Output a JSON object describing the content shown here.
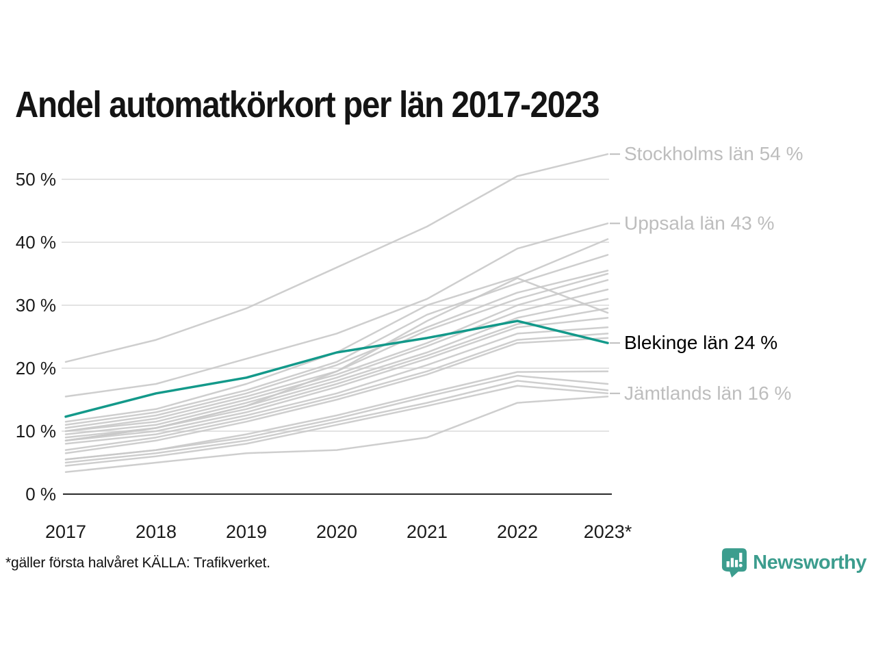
{
  "title": "Andel automatkörkort per län 2017-2023",
  "footnote": "*gäller första halvåret KÄLLA: Trafikverket.",
  "branding": {
    "name": "Newsworthy",
    "logo_icon": "bar-chart-pin-icon",
    "color": "#3C9D8E"
  },
  "colors": {
    "highlight_line": "#13998A",
    "muted_line": "#C9C9C9",
    "muted_label": "#BDBDBD",
    "dark_label": "#000000",
    "grid": "#E3E3E3",
    "axis": "#2A2A2A",
    "tick_text": "#1A1A1A"
  },
  "chart_data": {
    "type": "line",
    "title": "Andel automatkörkort per län 2017-2023",
    "x": [
      2017,
      2018,
      2019,
      2020,
      2021,
      2022,
      2023
    ],
    "x_tick_labels": [
      "2017",
      "2018",
      "2019",
      "2020",
      "2021",
      "2022",
      "2023*"
    ],
    "y_ticks": [
      0,
      10,
      20,
      30,
      40,
      50
    ],
    "y_tick_labels": [
      "0 %",
      "10 %",
      "20 %",
      "30 %",
      "40 %",
      "50 %"
    ],
    "ylim": [
      0,
      57
    ],
    "grid": "horizontal",
    "legend_position": "right-annotations",
    "annotations": [
      "Stockholms län 54 %",
      "Uppsala län 43 %",
      "Blekinge län 24 %",
      "Jämtlands län 16 %"
    ],
    "series": [
      {
        "id": "stockholm",
        "label": "Stockholms län 54 %",
        "label_style": "muted",
        "highlight": false,
        "values": [
          21,
          24.5,
          29.5,
          36,
          42.5,
          50.5,
          54
        ]
      },
      {
        "id": "uppsala",
        "label": "Uppsala län 43 %",
        "label_style": "muted",
        "highlight": false,
        "values": [
          15.5,
          17.5,
          21.5,
          25.5,
          31,
          39,
          43
        ]
      },
      {
        "id": "county-03",
        "label": null,
        "highlight": false,
        "values": [
          11.5,
          13.5,
          17.5,
          22.5,
          30,
          34.5,
          40.5
        ]
      },
      {
        "id": "county-04",
        "label": null,
        "highlight": false,
        "values": [
          11,
          13,
          16.5,
          21,
          28.5,
          33.5,
          38
        ]
      },
      {
        "id": "county-05",
        "label": null,
        "highlight": false,
        "values": [
          10.5,
          12.5,
          16,
          20.5,
          26.5,
          32,
          35.5
        ]
      },
      {
        "id": "county-06",
        "label": null,
        "highlight": false,
        "values": [
          10,
          12,
          15.5,
          19.5,
          26,
          31,
          35
        ]
      },
      {
        "id": "county-07",
        "label": null,
        "highlight": false,
        "values": [
          8.5,
          10.5,
          14,
          19.5,
          27.5,
          34.3,
          28.8
        ]
      },
      {
        "id": "county-08",
        "label": null,
        "highlight": false,
        "values": [
          10,
          11.5,
          15,
          19,
          24,
          30,
          34
        ]
      },
      {
        "id": "county-09",
        "label": null,
        "highlight": false,
        "values": [
          9.5,
          11,
          14.5,
          18.5,
          23.5,
          29,
          32.5
        ]
      },
      {
        "id": "county-10",
        "label": null,
        "highlight": false,
        "values": [
          9,
          10.5,
          14,
          18,
          22.5,
          28,
          31
        ]
      },
      {
        "id": "county-11",
        "label": null,
        "highlight": false,
        "values": [
          8.5,
          10.5,
          13.5,
          17.5,
          22,
          27,
          29.5
        ]
      },
      {
        "id": "county-12",
        "label": null,
        "highlight": false,
        "values": [
          8.5,
          10,
          13,
          17,
          21.5,
          26.5,
          28
        ]
      },
      {
        "id": "county-13",
        "label": null,
        "highlight": false,
        "values": [
          8,
          9.5,
          12.5,
          16,
          20.5,
          25.5,
          26.5
        ]
      },
      {
        "id": "county-14",
        "label": null,
        "highlight": false,
        "values": [
          7,
          9,
          12,
          15.5,
          19.5,
          24.5,
          25.5
        ]
      },
      {
        "id": "county-15",
        "label": null,
        "highlight": false,
        "values": [
          6.5,
          8.5,
          11.5,
          15,
          19,
          24,
          24.8
        ]
      },
      {
        "id": "county-17",
        "label": null,
        "highlight": false,
        "values": [
          5.5,
          7,
          9.5,
          12.5,
          16,
          19.4,
          19.5
        ]
      },
      {
        "id": "county-18",
        "label": null,
        "highlight": false,
        "values": [
          5.5,
          7,
          9,
          12,
          15.5,
          18.8,
          17.5
        ]
      },
      {
        "id": "county-19",
        "label": null,
        "highlight": false,
        "values": [
          5,
          6.5,
          8.5,
          11.5,
          14.5,
          18,
          16.5
        ]
      },
      {
        "id": "jamtland",
        "label": "Jämtlands län 16 %",
        "label_style": "muted",
        "highlight": false,
        "values": [
          4.5,
          6,
          8,
          11,
          14,
          17.2,
          16
        ]
      },
      {
        "id": "county-21",
        "label": null,
        "highlight": false,
        "values": [
          3.5,
          5,
          6.5,
          7,
          9,
          14.5,
          15.5
        ]
      },
      {
        "id": "blekinge",
        "label": "Blekinge län 24 %",
        "label_style": "dark",
        "highlight": true,
        "values": [
          12.3,
          16,
          18.5,
          22.5,
          24.8,
          27.5,
          24
        ]
      }
    ]
  }
}
